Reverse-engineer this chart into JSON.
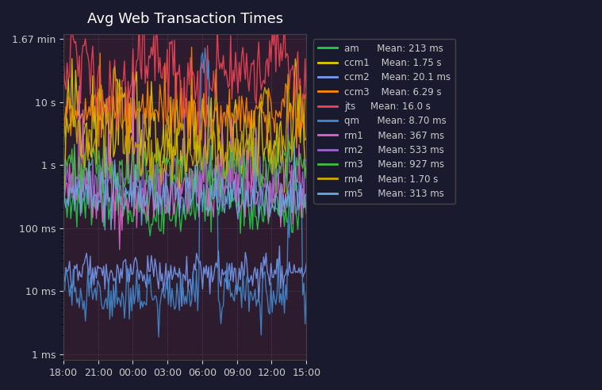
{
  "title": "Avg Web Transaction Times",
  "background_color": "#1a1a2e",
  "plot_bg_color": "#2d1b2e",
  "grid_color": "#5a3a5a",
  "text_color": "#cccccc",
  "series": [
    {
      "name": "am",
      "mean_ms": 213,
      "color": "#22cc44",
      "legend": "Mean: 213 ms"
    },
    {
      "name": "ccm1",
      "mean_ms": 1750,
      "color": "#ddcc00",
      "legend": "Mean: 1.75 s"
    },
    {
      "name": "ccm2",
      "mean_ms": 20.1,
      "color": "#7799ee",
      "legend": "Mean: 20.1 ms"
    },
    {
      "name": "ccm3",
      "mean_ms": 6290,
      "color": "#ff8800",
      "legend": "Mean: 6.29 s"
    },
    {
      "name": "jts",
      "mean_ms": 16000,
      "color": "#ee4455",
      "legend": "Mean: 16.0 s"
    },
    {
      "name": "qm",
      "mean_ms": 8.7,
      "color": "#4488cc",
      "legend": "Mean: 8.70 ms"
    },
    {
      "name": "rm1",
      "mean_ms": 367,
      "color": "#dd66cc",
      "legend": "Mean: 367 ms"
    },
    {
      "name": "rm2",
      "mean_ms": 533,
      "color": "#9966cc",
      "legend": "Mean: 533 ms"
    },
    {
      "name": "rm3",
      "mean_ms": 927,
      "color": "#44bb44",
      "legend": "Mean: 927 ms"
    },
    {
      "name": "rm4",
      "mean_ms": 1700,
      "color": "#ccaa00",
      "legend": "Mean: 1.70 s"
    },
    {
      "name": "rm5",
      "mean_ms": 313,
      "color": "#66aadd",
      "legend": "Mean: 313 ms"
    }
  ],
  "x_ticks": [
    "18:00",
    "21:00",
    "00:00",
    "03:00",
    "06:00",
    "09:00",
    "12:00",
    "15:00"
  ],
  "y_ticks_labels": [
    "1 ms",
    "10 ms",
    "100 ms",
    "1 s",
    "10 s",
    "1.67 min"
  ],
  "y_ticks_values": [
    1,
    10,
    100,
    1000,
    10000,
    100200
  ],
  "ylim_min": 0.8,
  "ylim_max": 120000,
  "n_points": 200
}
